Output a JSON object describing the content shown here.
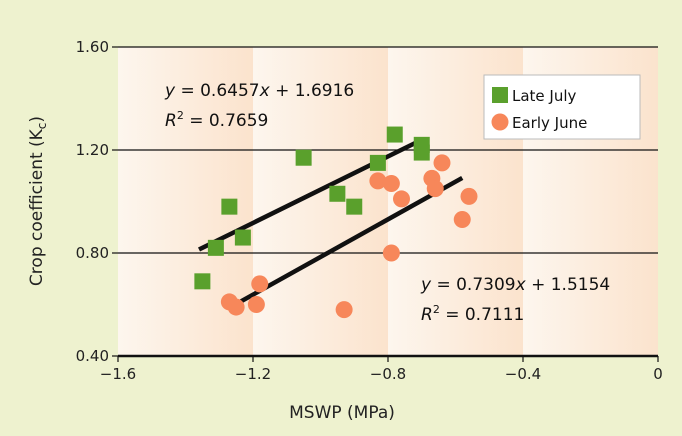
{
  "colors": {
    "background": "#eef2cf",
    "band_light": "#fdf6ee",
    "band_dark": "#fbe3cd",
    "late_july": "#5aa02c",
    "early_june": "#f7875a",
    "line": "#111111"
  },
  "chart_data": {
    "type": "scatter",
    "xlabel": "MSWP (MPa)",
    "ylabel_main": "Crop coefficient  (K",
    "ylabel_sub": "c",
    "ylabel_close": ")",
    "xlim": [
      -1.6,
      0
    ],
    "ylim": [
      0.4,
      1.6
    ],
    "x_ticks": [
      -1.6,
      -1.2,
      -0.8,
      -0.4,
      0
    ],
    "x_tick_labels": [
      "−1.6",
      "−1.2",
      "−0.8",
      "−0.4",
      "0"
    ],
    "y_ticks": [
      0.4,
      0.8,
      1.2,
      1.6
    ],
    "y_tick_labels": [
      "0.40",
      "0.80",
      "1.20",
      "1.60"
    ],
    "grid": "horizontal",
    "legend_position": "top-right",
    "series": [
      {
        "name": "Late July",
        "marker": "square",
        "color": "#5aa02c",
        "points": [
          [
            -1.35,
            0.69
          ],
          [
            -1.31,
            0.82
          ],
          [
            -1.27,
            0.98
          ],
          [
            -1.23,
            0.86
          ],
          [
            -1.05,
            1.17
          ],
          [
            -0.95,
            1.03
          ],
          [
            -0.9,
            0.98
          ],
          [
            -0.83,
            1.15
          ],
          [
            -0.78,
            1.26
          ],
          [
            -0.7,
            1.22
          ],
          [
            -0.7,
            1.19
          ]
        ],
        "fit": {
          "slope": 0.6457,
          "intercept": 1.6916,
          "x_range": [
            -1.36,
            -0.72
          ]
        },
        "equation": {
          "y": "y",
          "eq1": " = 0.6457",
          "x": "x",
          "eq2": " + 1.6916",
          "r": "R",
          "sup": "2",
          "r2": " = 0.7659"
        }
      },
      {
        "name": "Early June",
        "marker": "circle",
        "color": "#f7875a",
        "points": [
          [
            -1.27,
            0.61
          ],
          [
            -1.25,
            0.59
          ],
          [
            -1.19,
            0.6
          ],
          [
            -1.18,
            0.68
          ],
          [
            -0.93,
            0.58
          ],
          [
            -0.83,
            1.08
          ],
          [
            -0.79,
            1.07
          ],
          [
            -0.79,
            0.8
          ],
          [
            -0.76,
            1.01
          ],
          [
            -0.67,
            1.09
          ],
          [
            -0.66,
            1.05
          ],
          [
            -0.64,
            1.15
          ],
          [
            -0.58,
            0.93
          ],
          [
            -0.56,
            1.02
          ]
        ],
        "fit": {
          "slope": 0.7309,
          "intercept": 1.5154,
          "x_range": [
            -1.25,
            -0.58
          ]
        },
        "equation": {
          "y": "y",
          "eq1": " = 0.7309",
          "x": "x",
          "eq2": " + 1.5154",
          "r": "R",
          "sup": "2",
          "r2": " = 0.7111"
        }
      }
    ]
  }
}
